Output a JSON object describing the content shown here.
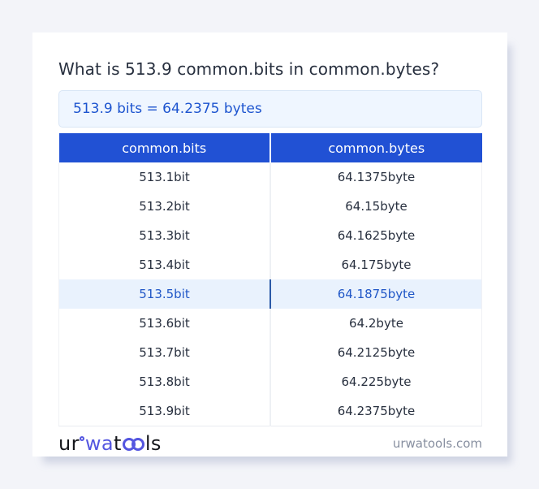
{
  "card": {
    "question": "What is 513.9 common.bits in common.bytes?",
    "answer": "513.9 bits = 64.2375 bytes"
  },
  "table": {
    "headers": [
      "common.bits",
      "common.bytes"
    ],
    "rows": [
      {
        "bits": "513.1bit",
        "bytes": "64.1375byte",
        "highlighted": false
      },
      {
        "bits": "513.2bit",
        "bytes": "64.15byte",
        "highlighted": false
      },
      {
        "bits": "513.3bit",
        "bytes": "64.1625byte",
        "highlighted": false
      },
      {
        "bits": "513.4bit",
        "bytes": "64.175byte",
        "highlighted": false
      },
      {
        "bits": "513.5bit",
        "bytes": "64.1875byte",
        "highlighted": true
      },
      {
        "bits": "513.6bit",
        "bytes": "64.2byte",
        "highlighted": false
      },
      {
        "bits": "513.7bit",
        "bytes": "64.2125byte",
        "highlighted": false
      },
      {
        "bits": "513.8bit",
        "bytes": "64.225byte",
        "highlighted": false
      },
      {
        "bits": "513.9bit",
        "bytes": "64.2375byte",
        "highlighted": false
      }
    ]
  },
  "footer": {
    "logo": {
      "segment1": "ur",
      "segment2": "wa",
      "segment3": "t",
      "segment4": "ls"
    },
    "site_url": "urwatools.com"
  },
  "colors": {
    "page_bg": "#f3f4f9",
    "header_bg": "#2151d4",
    "answer_bg": "#eff6ff",
    "answer_text": "#1d54cf",
    "highlight_bg": "#e9f2fd",
    "highlight_text": "#2057c7",
    "highlight_divider": "#2b5aa7",
    "logo_accent": "#5456e0"
  }
}
